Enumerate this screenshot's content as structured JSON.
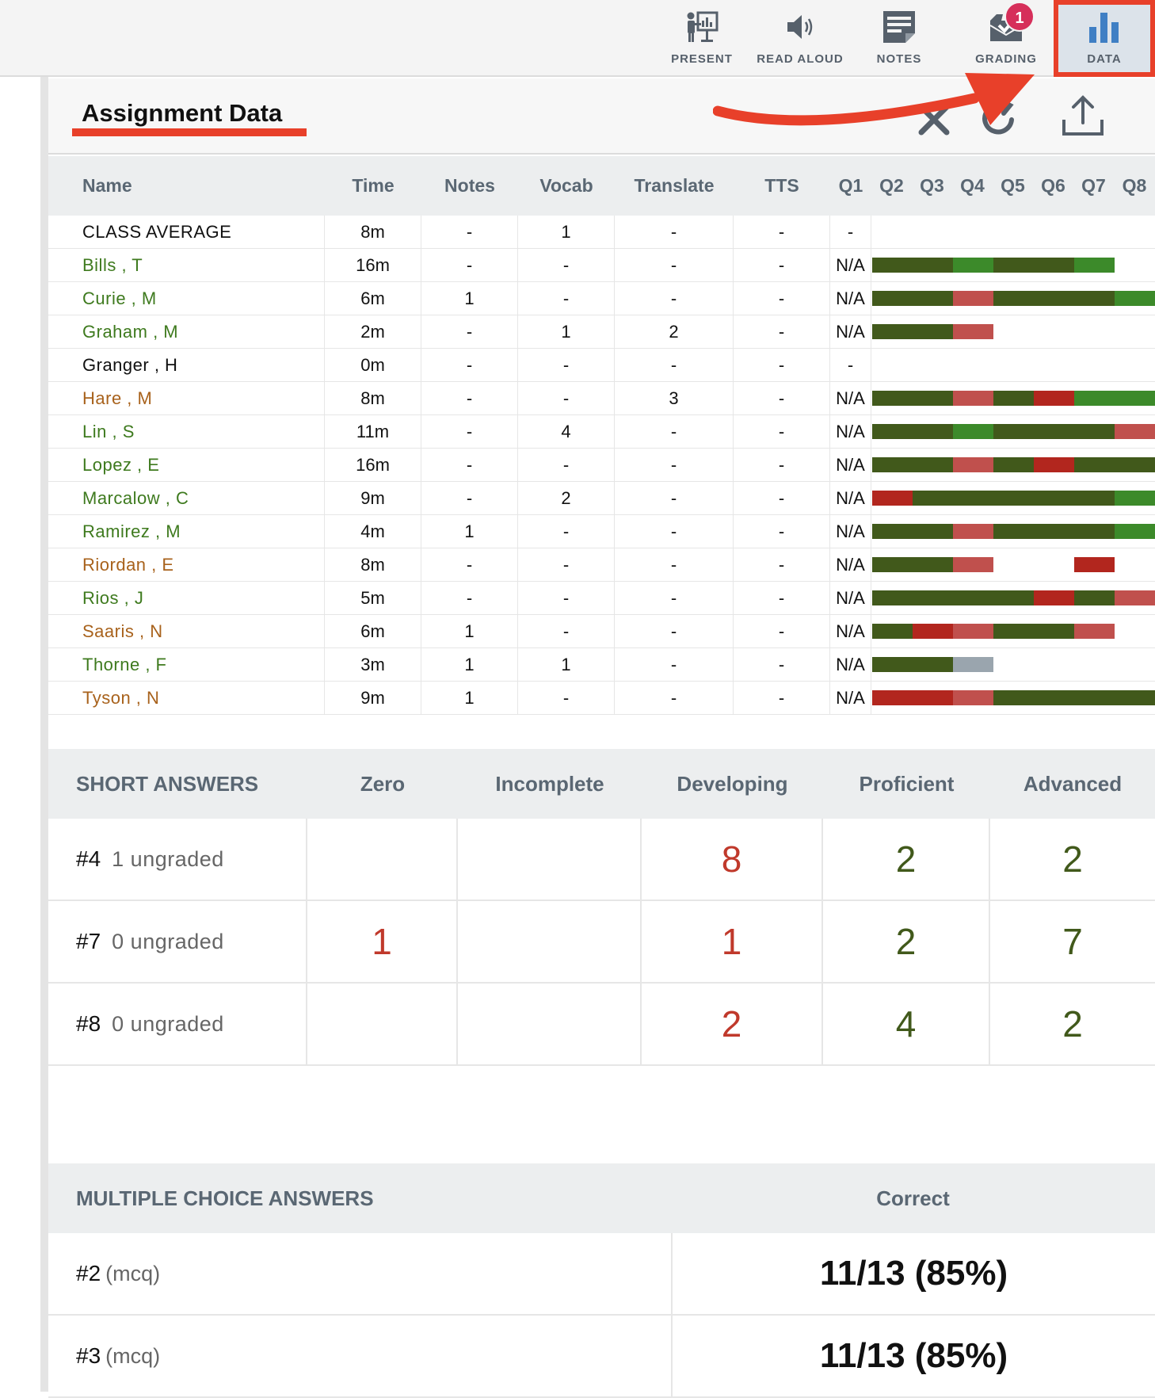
{
  "toolbar": {
    "items": [
      {
        "label": "PRESENT",
        "icon": "presentation-icon"
      },
      {
        "label": "READ ALOUD",
        "icon": "speaker-icon"
      },
      {
        "label": "NOTES",
        "icon": "notes-icon"
      },
      {
        "label": "GRADING",
        "icon": "grading-inbox-icon"
      },
      {
        "label": "DATA",
        "icon": "bar-chart-icon"
      }
    ],
    "grading_badge": "1",
    "active_item": "DATA"
  },
  "panel": {
    "title": "Assignment Data",
    "actions": [
      "close-icon",
      "refresh-icon",
      "export-upload-icon"
    ]
  },
  "table": {
    "columns": [
      "Name",
      "Time",
      "Notes",
      "Vocab",
      "Translate",
      "TTS",
      "Q1",
      "Q2",
      "Q3",
      "Q4",
      "Q5",
      "Q6",
      "Q7",
      "Q8"
    ],
    "rows": [
      {
        "name": "CLASS AVERAGE",
        "name_color": "#111111",
        "time": "8m",
        "notes": "-",
        "vocab": "1",
        "translate": "-",
        "tts": "-",
        "q1": "-",
        "segments": []
      },
      {
        "name": "Bills , T",
        "name_color": "#3e7a1e",
        "time": "16m",
        "notes": "-",
        "vocab": "-",
        "translate": "-",
        "tts": "-",
        "q1": "N/A",
        "segments": [
          "dg",
          "dg",
          "g",
          "dg",
          "dg",
          "g"
        ]
      },
      {
        "name": "Curie , M",
        "name_color": "#3e7a1e",
        "time": "6m",
        "notes": "1",
        "vocab": "-",
        "translate": "-",
        "tts": "-",
        "q1": "N/A",
        "segments": [
          "dg",
          "dg",
          "r",
          "dg",
          "dg",
          "dg",
          "g"
        ]
      },
      {
        "name": "Graham , M",
        "name_color": "#3e7a1e",
        "time": "2m",
        "notes": "-",
        "vocab": "1",
        "translate": "2",
        "tts": "-",
        "q1": "N/A",
        "segments": [
          "dg",
          "dg",
          "r"
        ]
      },
      {
        "name": "Granger , H",
        "name_color": "#111111",
        "time": "0m",
        "notes": "-",
        "vocab": "-",
        "translate": "-",
        "tts": "-",
        "q1": "-",
        "segments": []
      },
      {
        "name": "Hare , M",
        "name_color": "#a8621c",
        "time": "8m",
        "notes": "-",
        "vocab": "-",
        "translate": "3",
        "tts": "-",
        "q1": "N/A",
        "segments": [
          "dg",
          "dg",
          "r",
          "dg",
          "R",
          "g",
          "g"
        ]
      },
      {
        "name": "Lin , S",
        "name_color": "#3e7a1e",
        "time": "11m",
        "notes": "-",
        "vocab": "4",
        "translate": "-",
        "tts": "-",
        "q1": "N/A",
        "segments": [
          "dg",
          "dg",
          "g",
          "dg",
          "dg",
          "dg",
          "r"
        ]
      },
      {
        "name": "Lopez , E",
        "name_color": "#3e7a1e",
        "time": "16m",
        "notes": "-",
        "vocab": "-",
        "translate": "-",
        "tts": "-",
        "q1": "N/A",
        "segments": [
          "dg",
          "dg",
          "r",
          "dg",
          "R",
          "dg",
          "dg"
        ]
      },
      {
        "name": "Marcalow , C",
        "name_color": "#3e7a1e",
        "time": "9m",
        "notes": "-",
        "vocab": "2",
        "translate": "-",
        "tts": "-",
        "q1": "N/A",
        "segments": [
          "R",
          "dg",
          "dg",
          "dg",
          "dg",
          "dg",
          "g"
        ]
      },
      {
        "name": "Ramirez , M",
        "name_color": "#3e7a1e",
        "time": "4m",
        "notes": "1",
        "vocab": "-",
        "translate": "-",
        "tts": "-",
        "q1": "N/A",
        "segments": [
          "dg",
          "dg",
          "r",
          "dg",
          "dg",
          "dg",
          "g"
        ]
      },
      {
        "name": "Riordan , E",
        "name_color": "#a8621c",
        "time": "8m",
        "notes": "-",
        "vocab": "-",
        "translate": "-",
        "tts": "-",
        "q1": "N/A",
        "segments": [
          "dg",
          "dg",
          "r",
          "",
          "",
          "R"
        ]
      },
      {
        "name": "Rios , J",
        "name_color": "#3e7a1e",
        "time": "5m",
        "notes": "-",
        "vocab": "-",
        "translate": "-",
        "tts": "-",
        "q1": "N/A",
        "segments": [
          "dg",
          "dg",
          "dg",
          "dg",
          "R",
          "dg",
          "r"
        ]
      },
      {
        "name": "Saaris , N",
        "name_color": "#a8621c",
        "time": "6m",
        "notes": "1",
        "vocab": "-",
        "translate": "-",
        "tts": "-",
        "q1": "N/A",
        "segments": [
          "dg",
          "R",
          "r",
          "dg",
          "dg",
          "r"
        ]
      },
      {
        "name": "Thorne , F",
        "name_color": "#3e7a1e",
        "time": "3m",
        "notes": "1",
        "vocab": "1",
        "translate": "-",
        "tts": "-",
        "q1": "N/A",
        "segments": [
          "dg",
          "dg",
          "gray"
        ]
      },
      {
        "name": "Tyson , N",
        "name_color": "#a8621c",
        "time": "9m",
        "notes": "1",
        "vocab": "-",
        "translate": "-",
        "tts": "-",
        "q1": "N/A",
        "segments": [
          "R",
          "R",
          "r",
          "dg",
          "dg",
          "dg",
          "dg"
        ]
      }
    ],
    "segment_colors": {
      "dg": "#41591b",
      "g": "#3c8a2a",
      "r": "#c0504d",
      "R": "#b2261e",
      "gray": "#9aa5ae"
    }
  },
  "short_answers": {
    "header": "SHORT ANSWERS",
    "columns": [
      "Zero",
      "Incomplete",
      "Developing",
      "Proficient",
      "Advanced"
    ],
    "rows": [
      {
        "q": "#4",
        "ungraded": "1 ungraded",
        "values": [
          "",
          "",
          "8",
          "2",
          "2"
        ]
      },
      {
        "q": "#7",
        "ungraded": "0 ungraded",
        "values": [
          "1",
          "",
          "1",
          "2",
          "7"
        ]
      },
      {
        "q": "#8",
        "ungraded": "0 ungraded",
        "values": [
          "",
          "",
          "2",
          "4",
          "2"
        ]
      }
    ],
    "value_colors": [
      "#c0392b",
      "#c0392b",
      "#c0392b",
      "#41591b",
      "#41591b"
    ]
  },
  "multiple_choice": {
    "header": "MULTIPLE CHOICE ANSWERS",
    "column": "Correct",
    "rows": [
      {
        "q": "#2",
        "type": "(mcq)",
        "value": "11/13 (85%)"
      },
      {
        "q": "#3",
        "type": "(mcq)",
        "value": "11/13 (85%)"
      }
    ]
  },
  "annotations": {
    "highlight_color": "#e8402a"
  }
}
